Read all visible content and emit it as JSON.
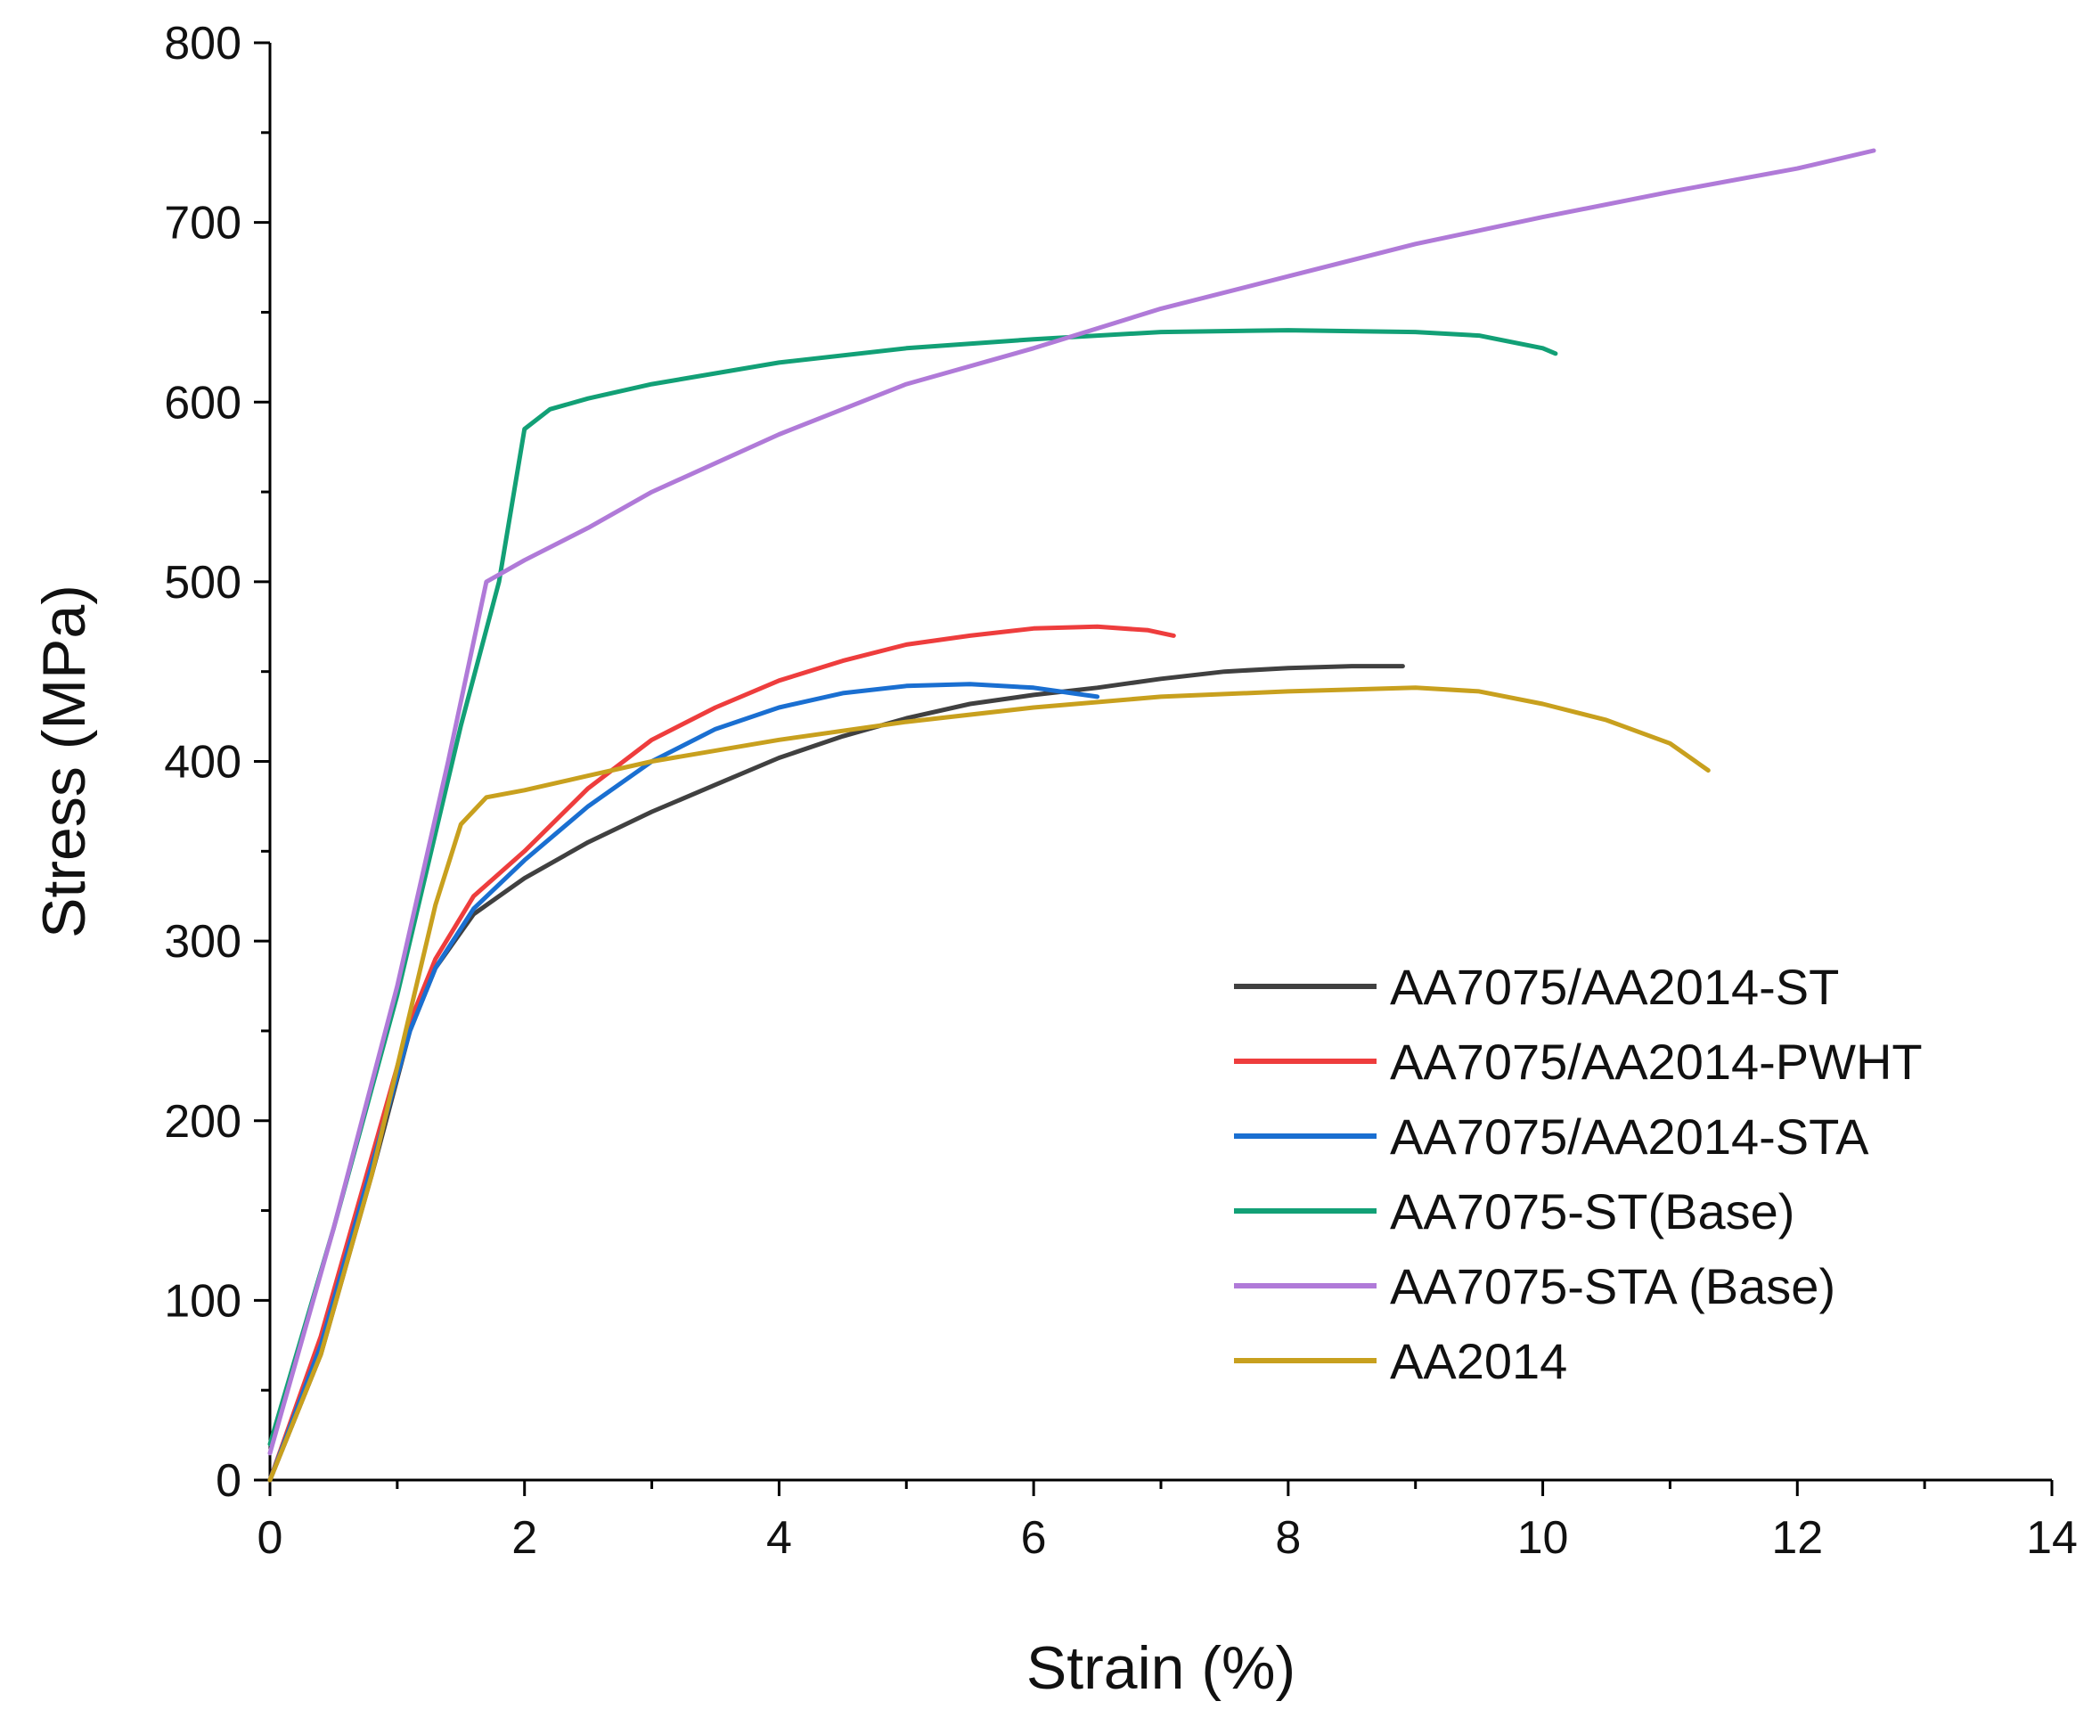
{
  "chart_data": {
    "type": "line",
    "title": "",
    "xlabel": "Strain (%)",
    "ylabel": "Stress (MPa)",
    "xlim": [
      0,
      14
    ],
    "ylim": [
      0,
      800
    ],
    "xticks": [
      0,
      2,
      4,
      6,
      8,
      10,
      12,
      14
    ],
    "yticks": [
      0,
      100,
      200,
      300,
      400,
      500,
      600,
      700,
      800
    ],
    "grid": false,
    "legend_position": "lower-right",
    "series": [
      {
        "name": "AA7075/AA2014-ST",
        "color": "#404040",
        "points": [
          [
            0,
            0
          ],
          [
            0.4,
            70
          ],
          [
            0.8,
            170
          ],
          [
            1.1,
            250
          ],
          [
            1.3,
            285
          ],
          [
            1.6,
            315
          ],
          [
            2,
            335
          ],
          [
            2.5,
            355
          ],
          [
            3,
            372
          ],
          [
            3.5,
            387
          ],
          [
            4,
            402
          ],
          [
            4.5,
            414
          ],
          [
            5,
            424
          ],
          [
            5.5,
            432
          ],
          [
            6,
            437
          ],
          [
            6.5,
            441
          ],
          [
            7,
            446
          ],
          [
            7.5,
            450
          ],
          [
            8,
            452
          ],
          [
            8.5,
            453
          ],
          [
            8.9,
            453
          ]
        ]
      },
      {
        "name": "AA7075/AA2014-PWHT",
        "color": "#ee3d3d",
        "points": [
          [
            0,
            0
          ],
          [
            0.4,
            80
          ],
          [
            0.8,
            180
          ],
          [
            1.1,
            255
          ],
          [
            1.3,
            290
          ],
          [
            1.6,
            325
          ],
          [
            2,
            350
          ],
          [
            2.5,
            385
          ],
          [
            3,
            412
          ],
          [
            3.5,
            430
          ],
          [
            4,
            445
          ],
          [
            4.5,
            456
          ],
          [
            5,
            465
          ],
          [
            5.5,
            470
          ],
          [
            6,
            474
          ],
          [
            6.5,
            475
          ],
          [
            6.9,
            473
          ],
          [
            7.1,
            470
          ]
        ]
      },
      {
        "name": "AA7075/AA2014-STA",
        "color": "#1a6fd1",
        "points": [
          [
            0,
            0
          ],
          [
            0.4,
            75
          ],
          [
            0.8,
            175
          ],
          [
            1.1,
            250
          ],
          [
            1.3,
            285
          ],
          [
            1.6,
            318
          ],
          [
            2,
            345
          ],
          [
            2.5,
            375
          ],
          [
            3,
            400
          ],
          [
            3.5,
            418
          ],
          [
            4,
            430
          ],
          [
            4.5,
            438
          ],
          [
            5,
            442
          ],
          [
            5.5,
            443
          ],
          [
            6,
            441
          ],
          [
            6.3,
            438
          ],
          [
            6.5,
            436
          ]
        ]
      },
      {
        "name": "AA7075-ST(Base)",
        "color": "#12a076",
        "points": [
          [
            0,
            20
          ],
          [
            0.5,
            140
          ],
          [
            1,
            270
          ],
          [
            1.5,
            420
          ],
          [
            1.8,
            500
          ],
          [
            2,
            585
          ],
          [
            2.2,
            596
          ],
          [
            2.5,
            602
          ],
          [
            3,
            610
          ],
          [
            4,
            622
          ],
          [
            5,
            630
          ],
          [
            6,
            635
          ],
          [
            7,
            639
          ],
          [
            8,
            640
          ],
          [
            9,
            639
          ],
          [
            9.5,
            637
          ],
          [
            10,
            630
          ],
          [
            10.1,
            627
          ]
        ]
      },
      {
        "name": "AA7075-STA (Base)",
        "color": "#b07ad8",
        "points": [
          [
            0,
            15
          ],
          [
            0.5,
            140
          ],
          [
            1,
            275
          ],
          [
            1.4,
            400
          ],
          [
            1.7,
            500
          ],
          [
            2,
            512
          ],
          [
            2.5,
            530
          ],
          [
            3,
            550
          ],
          [
            4,
            582
          ],
          [
            5,
            610
          ],
          [
            6,
            630
          ],
          [
            7,
            652
          ],
          [
            8,
            670
          ],
          [
            9,
            688
          ],
          [
            10,
            703
          ],
          [
            11,
            717
          ],
          [
            12,
            730
          ],
          [
            12.6,
            740
          ]
        ]
      },
      {
        "name": "AA2014",
        "color": "#c8a01e",
        "points": [
          [
            0,
            0
          ],
          [
            0.4,
            70
          ],
          [
            0.8,
            170
          ],
          [
            1.1,
            260
          ],
          [
            1.3,
            320
          ],
          [
            1.5,
            365
          ],
          [
            1.7,
            380
          ],
          [
            2,
            384
          ],
          [
            2.5,
            392
          ],
          [
            3,
            400
          ],
          [
            4,
            412
          ],
          [
            5,
            422
          ],
          [
            6,
            430
          ],
          [
            7,
            436
          ],
          [
            8,
            439
          ],
          [
            9,
            441
          ],
          [
            9.5,
            439
          ],
          [
            10,
            432
          ],
          [
            10.5,
            423
          ],
          [
            11,
            410
          ],
          [
            11.3,
            395
          ]
        ]
      }
    ]
  }
}
